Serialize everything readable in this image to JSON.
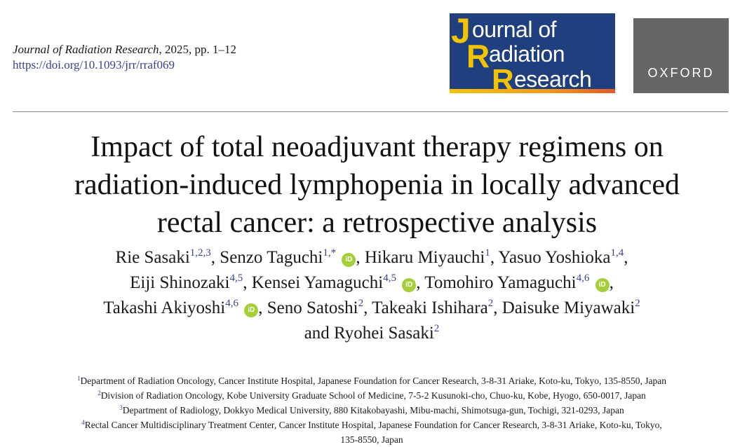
{
  "citation": {
    "journal": "Journal of Radiation Research",
    "rest": ", 2025, pp. 1–12",
    "doi": "https://doi.org/10.1093/jrr/rraf069"
  },
  "logos": {
    "jrr": {
      "big_letters": [
        "J",
        "R"
      ],
      "words": [
        "ournal of",
        "adiation",
        "esearch"
      ],
      "colors": {
        "background": "#1f3f7e",
        "letters": "#f2c400",
        "text": "#ffffff"
      }
    },
    "oxford": {
      "text": "OXFORD",
      "background": "#666666"
    }
  },
  "title_lines": [
    "Impact of total neoadjuvant therapy regimens on",
    "radiation-induced lymphopenia in locally advanced",
    "rectal cancer: a retrospective analysis"
  ],
  "authors": {
    "line1": [
      {
        "name": "Rie Sasaki",
        "sup": "1,2,3",
        "orcid": false
      },
      {
        "name": "Senzo Taguchi",
        "sup": "1,*",
        "orcid": true
      },
      {
        "name": "Hikaru Miyauchi",
        "sup": "1",
        "orcid": false
      },
      {
        "name": "Yasuo Yoshioka",
        "sup": "1,4",
        "orcid": false
      }
    ],
    "line2": [
      {
        "name": "Eiji Shinozaki",
        "sup": "4,5",
        "orcid": false
      },
      {
        "name": "Kensei Yamaguchi",
        "sup": "4,5",
        "orcid": true
      },
      {
        "name": "Tomohiro Yamaguchi",
        "sup": "4,6",
        "orcid": true
      }
    ],
    "line3": [
      {
        "name": "Takashi Akiyoshi",
        "sup": "4,6",
        "orcid": true
      },
      {
        "name": "Seno Satoshi",
        "sup": "2",
        "orcid": false
      },
      {
        "name": "Takeaki Ishihara",
        "sup": "2",
        "orcid": false
      },
      {
        "name": "Daisuke Miyawaki",
        "sup": "2",
        "orcid": false
      }
    ],
    "line4_prefix": "and",
    "line4": [
      {
        "name": "Ryohei Sasaki",
        "sup": "2",
        "orcid": false
      }
    ],
    "separator": ",",
    "orcid_label": "iD"
  },
  "affiliations": [
    {
      "num": "1",
      "text": "Department of Radiation Oncology, Cancer Institute Hospital, Japanese Foundation for Cancer Research, 3-8-31 Ariake, Koto-ku, Tokyo, 135-8550, Japan"
    },
    {
      "num": "2",
      "text": "Division of Radiation Oncology, Kobe University Graduate School of Medicine, 7-5-2 Kusunoki-cho, Chuo-ku, Kobe, Hyogo, 650-0017, Japan"
    },
    {
      "num": "3",
      "text": "Department of Radiology, Dokkyo Medical University, 880 Kitakobayashi, Mibu-machi, Shimotsuga-gun, Tochigi, 321-0293, Japan"
    },
    {
      "num": "4",
      "text": "Rectal Cancer Multidisciplinary Treatment Center, Cancer Institute Hospital, Japanese Foundation for Cancer Research, 3-8-31 Ariake, Koto-ku, Tokyo,"
    },
    {
      "num": "",
      "text": "135-8550, Japan"
    }
  ]
}
